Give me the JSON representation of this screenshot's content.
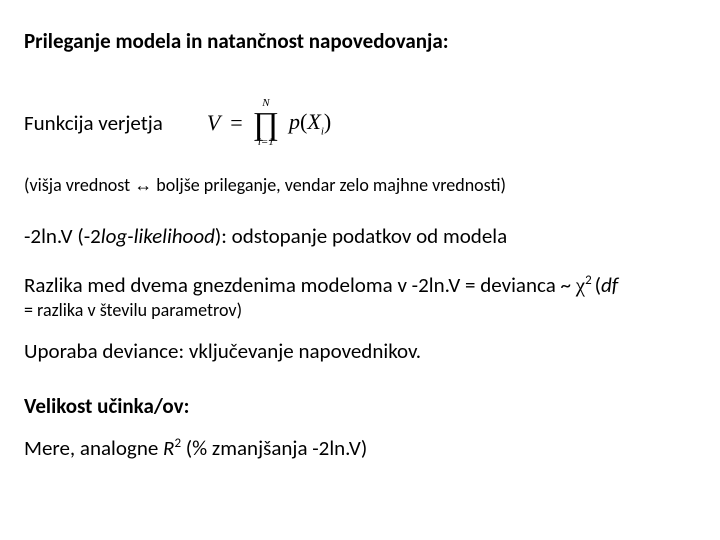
{
  "title": "Prileganje modela in natančnost napovedovanja:",
  "func_label": "Funkcija verjetja",
  "formula": {
    "V": "V",
    "eq": "=",
    "prod_top": "N",
    "prod_sym": "∏",
    "prod_bot": "i=1",
    "p": "p",
    "lparen": "(",
    "X": "X",
    "sub": "i",
    "rparen": ")"
  },
  "visja_pre": "(višja vrednost ",
  "arrow": "↔",
  "visja_post": " boljše prileganje, vendar zelo majhne vrednosti)",
  "ln_pre": "-2ln.V (-2",
  "ln_italic": "log-likelihood",
  "ln_post": "): odstopanje podatkov od modela",
  "razlika_pre": "Razlika med dvema gnezdenima modeloma v -2ln.V = devianca ~ ",
  "chi": "χ",
  "chi_sup": "2 ",
  "razlika_post1": "(",
  "df": "df",
  "razlika_sub": "= razlika v številu parametrov)",
  "uporaba": "Uporaba deviance: vključevanje napovednikov.",
  "velikost": "Velikost učinka/ov:",
  "mere_pre": "Mere, analogne ",
  "R": "R",
  "r_sup": "2",
  "mere_post": " (% zmanjšanja -2ln.V)"
}
